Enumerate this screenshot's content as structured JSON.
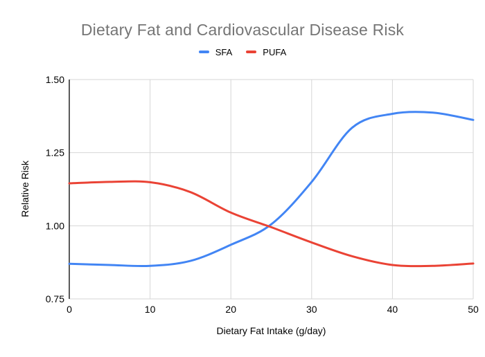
{
  "title": "Dietary Fat and Cardiovascular Disease Risk",
  "legend": [
    {
      "label": "SFA",
      "color": "#4285f4"
    },
    {
      "label": "PUFA",
      "color": "#ea4335"
    }
  ],
  "axes": {
    "x": {
      "title": "Dietary Fat Intake (g/day)",
      "ticks": [
        "0",
        "10",
        "20",
        "30",
        "40",
        "50"
      ]
    },
    "y": {
      "title": "Relative Risk",
      "ticks": [
        "1.50",
        "1.25",
        "1.00",
        "0.75"
      ]
    }
  },
  "colors": {
    "title_text": "#757575",
    "axis_text": "#000000",
    "gridline": "#d6d6d6",
    "y_axis_line": "#000000",
    "sfa_line": "#4285f4",
    "pufa_line": "#ea4335"
  },
  "chart_data": {
    "type": "line",
    "title": "Dietary Fat and Cardiovascular Disease Risk",
    "xlabel": "Dietary Fat Intake (g/day)",
    "ylabel": "Relative Risk",
    "xlim": [
      0,
      50
    ],
    "ylim": [
      0.75,
      1.5
    ],
    "grid": true,
    "legend_position": "top",
    "x": [
      0,
      5,
      10,
      15,
      20,
      25,
      30,
      35,
      40,
      45,
      50
    ],
    "series": [
      {
        "name": "SFA",
        "color": "#4285f4",
        "values": [
          0.87,
          0.866,
          0.863,
          0.88,
          0.935,
          1.005,
          1.15,
          1.335,
          1.383,
          1.387,
          1.362
        ]
      },
      {
        "name": "PUFA",
        "color": "#ea4335",
        "values": [
          1.145,
          1.15,
          1.149,
          1.115,
          1.045,
          0.995,
          0.943,
          0.896,
          0.866,
          0.863,
          0.871
        ]
      }
    ]
  }
}
